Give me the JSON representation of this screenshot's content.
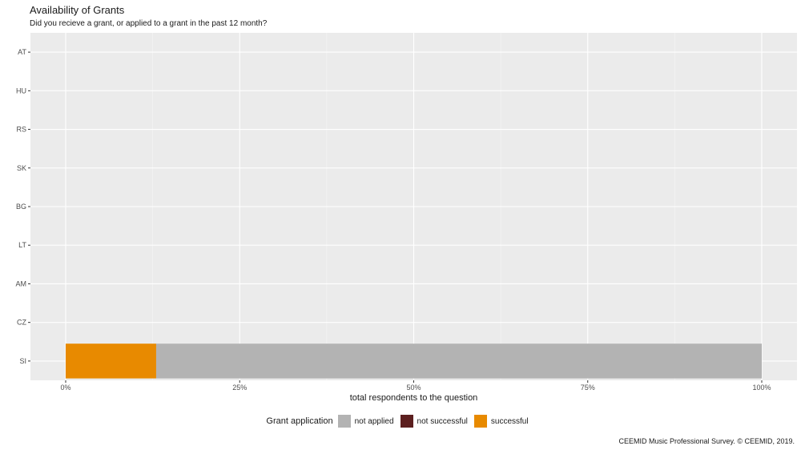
{
  "title": "Availability of Grants",
  "subtitle": "Did you recieve a grant, or applied to a grant in the past 12 month?",
  "caption": "CEEMID Music Professional Survey. © CEEMID, 2019.",
  "legend": {
    "title": "Grant application",
    "items": [
      {
        "label": "not applied",
        "color": "#b3b3b3"
      },
      {
        "label": "not successful",
        "color": "#5c1f1f"
      },
      {
        "label": "successful",
        "color": "#e88a00"
      }
    ]
  },
  "chart_data": {
    "type": "bar",
    "orientation": "horizontal",
    "stacked": true,
    "categories": [
      "AT",
      "HU",
      "RS",
      "SK",
      "BG",
      "LT",
      "AM",
      "CZ",
      "SI"
    ],
    "xlabel": "total respondents to the question",
    "ylabel": "",
    "xlim": [
      0,
      1
    ],
    "x_ticks": [
      {
        "value": 0,
        "label": "0%"
      },
      {
        "value": 0.25,
        "label": "25%"
      },
      {
        "value": 0.5,
        "label": "50%"
      },
      {
        "value": 0.75,
        "label": "75%"
      },
      {
        "value": 1,
        "label": "100%"
      }
    ],
    "series": [
      {
        "name": "successful",
        "color": "#e88a00",
        "values": [
          null,
          null,
          null,
          null,
          null,
          null,
          null,
          null,
          0.13
        ]
      },
      {
        "name": "not applied",
        "color": "#b3b3b3",
        "values": [
          null,
          null,
          null,
          null,
          null,
          null,
          null,
          null,
          0.87
        ]
      }
    ],
    "grid": true,
    "legend_position": "bottom"
  }
}
